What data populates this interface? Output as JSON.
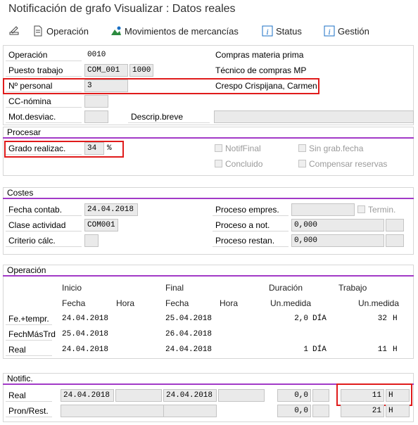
{
  "title": "Notificación de grafo Visualizar : Datos reales",
  "toolbar": {
    "operacion": "Operación",
    "movimientos": "Movimientos de mercancías",
    "status": "Status",
    "gestion": "Gestión"
  },
  "header": {
    "operacion_label": "Operación",
    "operacion_value": "0010",
    "operacion_desc": "Compras materia prima",
    "puesto_label": "Puesto trabajo",
    "puesto_value": "COM_001",
    "puesto_centro": "1000",
    "puesto_desc": "Técnico de compras MP",
    "personal_label": "Nº personal",
    "personal_value": "3",
    "personal_name": "Crespo Crispijana, Carmen",
    "ccnomina_label": "CC-nómina",
    "motdesv_label": "Mot.desviac.",
    "descrip_label": "Descrip.breve"
  },
  "procesar": {
    "title": "Procesar",
    "grado_label": "Grado realizac.",
    "grado_value": "34",
    "grado_unit": "%",
    "notiffinal": "NotifFinal",
    "concluido": "Concluido",
    "singrab": "Sin grab.fecha",
    "compensar": "Compensar reservas"
  },
  "costes": {
    "title": "Costes",
    "fecha_label": "Fecha contab.",
    "fecha_value": "24.04.2018",
    "clase_label": "Clase actividad",
    "clase_value": "COM001",
    "criterio_label": "Criterio cálc.",
    "proceso_empres_label": "Proceso empres.",
    "termin_label": "Termin.",
    "proceso_anot_label": "Proceso a not.",
    "proceso_anot_value": "0,000",
    "proceso_restan_label": "Proceso restan.",
    "proceso_restan_value": "0,000"
  },
  "operacion_sec": {
    "title": "Operación",
    "h_inicio": "Inicio",
    "h_final": "Final",
    "h_duracion": "Duración",
    "h_trabajo": "Trabajo",
    "h_fecha1": "Fecha",
    "h_hora1": "Hora",
    "h_fecha2": "Fecha",
    "h_hora2": "Hora",
    "h_unmedida1": "Un.medida",
    "h_unmedida2": "Un.medida",
    "rows": [
      {
        "label": "Fe.+tempr.",
        "inicio": "24.04.2018",
        "final": "25.04.2018",
        "duracion": "2,0",
        "dunit": "DÍA",
        "trabajo": "32",
        "tunit": "H"
      },
      {
        "label": "FechMásTrd",
        "inicio": "25.04.2018",
        "final": "26.04.2018",
        "duracion": "",
        "dunit": "",
        "trabajo": "",
        "tunit": ""
      },
      {
        "label": "Real",
        "inicio": "24.04.2018",
        "final": "24.04.2018",
        "duracion": "1",
        "dunit": "DÍA",
        "trabajo": "11",
        "tunit": "H"
      }
    ]
  },
  "notific": {
    "title": "Notific.",
    "real_label": "Real",
    "real_inicio": "24.04.2018",
    "real_final": "24.04.2018",
    "real_duracion": "0,0",
    "real_trabajo": "11",
    "real_tunit": "H",
    "pron_label": "Pron/Rest.",
    "pron_duracion": "0,0",
    "pron_trabajo": "21",
    "pron_tunit": "H"
  },
  "colors": {
    "accent": "#a23ac7",
    "highlight": "#e01b1b",
    "icon_blue": "#1a6fc4",
    "icon_green": "#2b8a3e"
  }
}
